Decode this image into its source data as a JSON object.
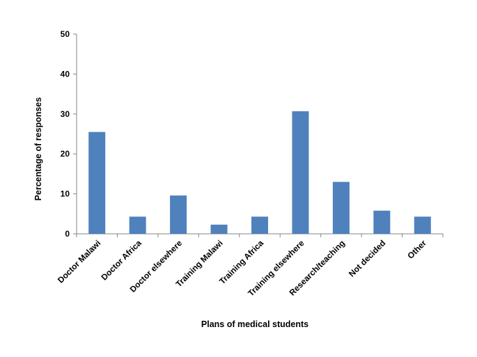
{
  "chart_data": {
    "type": "bar",
    "categories": [
      "Doctor Malawi",
      "Doctor Africa",
      "Doctor elsewhere",
      "Training Malawi",
      "Training Africa",
      "Training elsewhere",
      "Research/teaching",
      "Not decided",
      "Other"
    ],
    "values": [
      25.5,
      4.3,
      9.6,
      2.3,
      4.3,
      30.7,
      13.0,
      5.8,
      4.3
    ],
    "xlabel": "Plans of medical students",
    "ylabel": "Percentage of responses",
    "ylim": [
      0,
      50
    ],
    "yticks": [
      0,
      10,
      20,
      30,
      40,
      50
    ],
    "bar_color": "#4f81bd",
    "grid": false,
    "legend": "none"
  }
}
